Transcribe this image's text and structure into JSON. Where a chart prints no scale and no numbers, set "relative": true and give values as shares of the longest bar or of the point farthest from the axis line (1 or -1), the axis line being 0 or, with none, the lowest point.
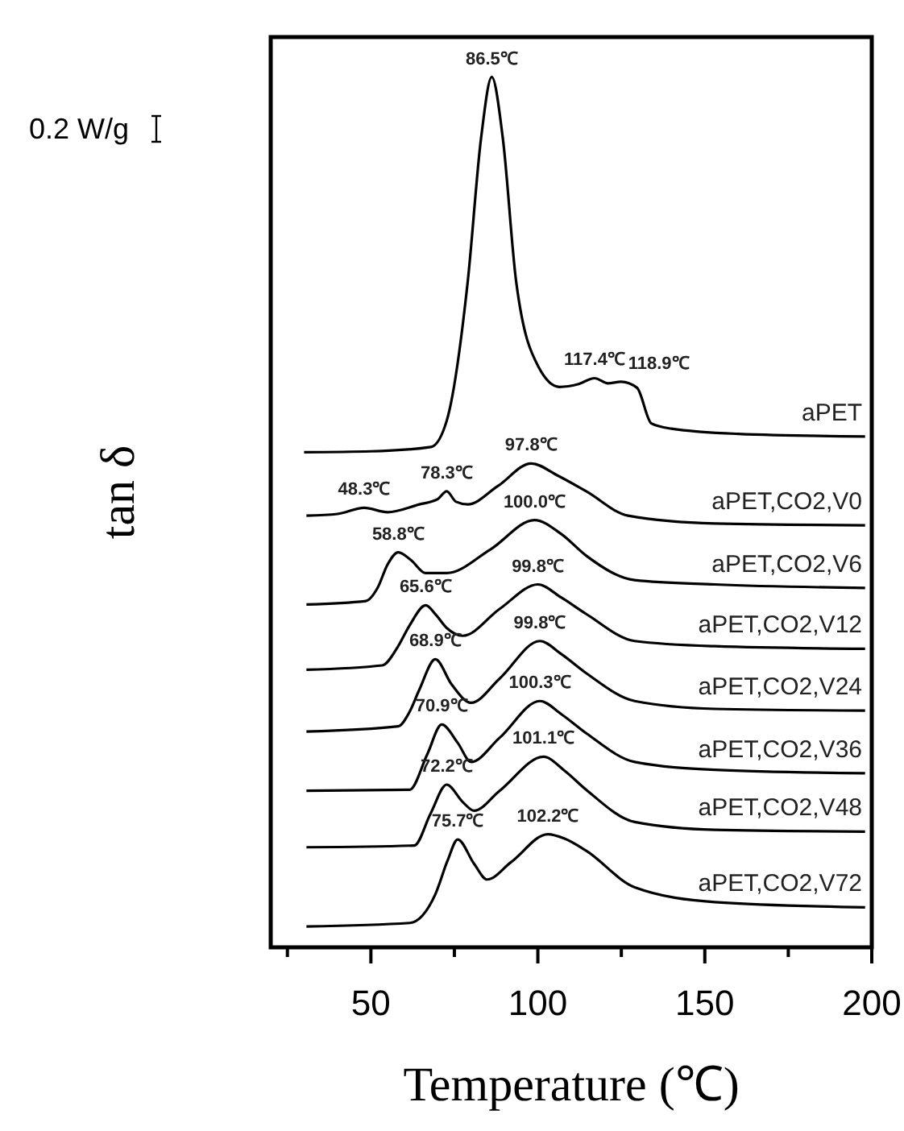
{
  "chart_data": {
    "type": "line",
    "xlabel": "Temperature (℃)",
    "ylabel": "tan δ",
    "relative": true,
    "tick_labels": "x",
    "legend": false,
    "marker": "none",
    "line_style": "solid",
    "xlim": [
      20,
      200
    ],
    "xticks": [
      {
        "value": 25,
        "label": null
      },
      50,
      {
        "value": 75,
        "label": null
      },
      100,
      {
        "value": 125,
        "label": null
      },
      150,
      {
        "value": 175,
        "label": null
      },
      200
    ],
    "series": [
      {
        "name": "aPET",
        "color": "#000000",
        "x": [
          30,
          50,
          68,
          72.7,
          79,
          83,
          86.2,
          89.5,
          93.5,
          100.2,
          106.5,
          112,
          117,
          121,
          124.9,
          129.7,
          134,
          140,
          160,
          198
        ],
        "values": [
          0.569,
          0.57,
          0.575,
          0.605,
          0.765,
          0.93,
          1.0,
          0.93,
          0.765,
          0.667,
          0.644,
          0.647,
          0.654,
          0.648,
          0.65,
          0.643,
          0.602,
          0.596,
          0.59,
          0.587
        ]
      },
      {
        "name": "aPET,CO2,V0",
        "color": "#000000",
        "x": [
          30.7,
          40,
          48,
          55,
          64.5,
          70,
          72.7,
          75.5,
          79,
          88,
          98,
          106,
          114.5,
          127,
          153,
          198
        ],
        "values": [
          0.496,
          0.498,
          0.505,
          0.5,
          0.509,
          0.515,
          0.524,
          0.512,
          0.509,
          0.53,
          0.556,
          0.542,
          0.524,
          0.496,
          0.487,
          0.485
        ]
      },
      {
        "name": "aPET,CO2,V6",
        "color": "#000000",
        "x": [
          30.7,
          48.5,
          52,
          55,
          58.2,
          62,
          66.4,
          72.7,
          85.7,
          99,
          107,
          114.5,
          129,
          153,
          198
        ],
        "values": [
          0.394,
          0.398,
          0.413,
          0.44,
          0.454,
          0.445,
          0.43,
          0.43,
          0.457,
          0.491,
          0.475,
          0.45,
          0.422,
          0.417,
          0.413
        ]
      },
      {
        "name": "aPET,CO2,V12",
        "color": "#000000",
        "x": [
          30.7,
          53.4,
          58,
          61.6,
          66.4,
          69.5,
          72.7,
          77.5,
          88.6,
          100,
          107,
          114.5,
          129,
          153,
          198
        ],
        "values": [
          0.319,
          0.324,
          0.345,
          0.37,
          0.393,
          0.382,
          0.367,
          0.358,
          0.389,
          0.417,
          0.402,
          0.383,
          0.352,
          0.346,
          0.343
        ]
      },
      {
        "name": "aPET,CO2,V24",
        "color": "#000000",
        "x": [
          30.7,
          58.2,
          61.5,
          64.5,
          69.3,
          74.2,
          80,
          88.6,
          100.6,
          107,
          114.5,
          129,
          153,
          198
        ],
        "values": [
          0.248,
          0.254,
          0.27,
          0.296,
          0.331,
          0.302,
          0.281,
          0.309,
          0.352,
          0.337,
          0.315,
          0.283,
          0.274,
          0.272
        ]
      },
      {
        "name": "aPET,CO2,V36",
        "color": "#000000",
        "x": [
          30.7,
          61.6,
          66.9,
          71.2,
          76,
          80,
          88.6,
          100.6,
          107,
          114.5,
          129,
          153,
          198
        ],
        "values": [
          0.18,
          0.181,
          0.222,
          0.256,
          0.235,
          0.213,
          0.241,
          0.283,
          0.268,
          0.246,
          0.213,
          0.204,
          0.2
        ]
      },
      {
        "name": "aPET,CO2,V48",
        "color": "#000000",
        "x": [
          30.7,
          63,
          67.9,
          72.7,
          77.5,
          80.9,
          88.6,
          101.7,
          108,
          114.5,
          129,
          153,
          198
        ],
        "values": [
          0.115,
          0.117,
          0.154,
          0.187,
          0.167,
          0.157,
          0.18,
          0.219,
          0.203,
          0.181,
          0.144,
          0.135,
          0.133
        ]
      },
      {
        "name": "aPET,CO2,V72",
        "color": "#000000",
        "x": [
          30.7,
          61.6,
          69.3,
          73,
          76,
          80.9,
          84.8,
          92,
          103,
          108,
          114.5,
          129,
          153,
          198
        ],
        "values": [
          0.024,
          0.028,
          0.061,
          0.1,
          0.124,
          0.096,
          0.078,
          0.098,
          0.13,
          0.125,
          0.111,
          0.069,
          0.052,
          0.046
        ]
      }
    ],
    "annotations": [
      "0.2 W/g",
      {
        "text": "86.5℃",
        "x": 86.2,
        "y": 1.0
      },
      {
        "text": "117.4℃",
        "x": 117,
        "y": 0.654
      },
      {
        "text": "118.9℃",
        "x": 124.9,
        "y": 0.65
      },
      {
        "text": "48.3℃",
        "x": 48,
        "y": 0.505
      },
      {
        "text": "78.3℃",
        "x": 72.7,
        "y": 0.524
      },
      {
        "text": "97.8℃",
        "x": 98,
        "y": 0.556
      },
      {
        "text": "58.8℃",
        "x": 58.2,
        "y": 0.454
      },
      {
        "text": "100.0℃",
        "x": 99,
        "y": 0.491
      },
      {
        "text": "65.6℃",
        "x": 66.4,
        "y": 0.393
      },
      {
        "text": "99.8℃",
        "x": 100,
        "y": 0.417
      },
      {
        "text": "68.9℃",
        "x": 69.3,
        "y": 0.331
      },
      {
        "text": "99.8℃",
        "x": 100.6,
        "y": 0.352
      },
      {
        "text": "70.9℃",
        "x": 71.2,
        "y": 0.256
      },
      {
        "text": "100.3℃",
        "x": 100.6,
        "y": 0.283
      },
      {
        "text": "72.2℃",
        "x": 72.7,
        "y": 0.187
      },
      {
        "text": "101.1℃",
        "x": 101.7,
        "y": 0.219
      },
      {
        "text": "75.7℃",
        "x": 76,
        "y": 0.124
      },
      {
        "text": "102.2℃",
        "x": 103,
        "y": 0.13
      }
    ]
  }
}
